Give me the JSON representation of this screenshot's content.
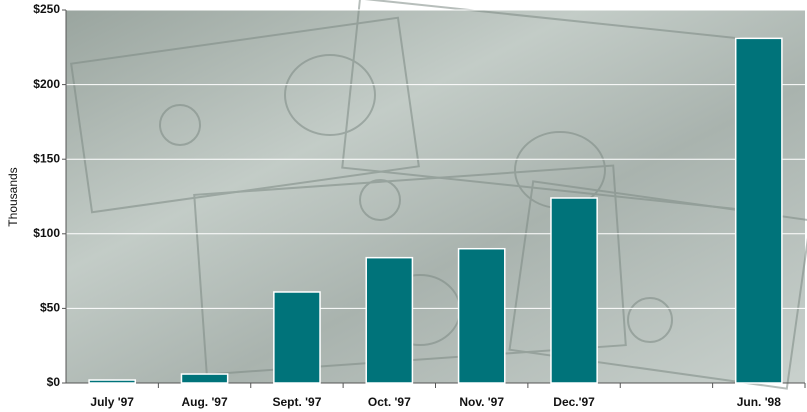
{
  "chart_data": {
    "type": "bar",
    "y_label": "Thousands",
    "categories": [
      "July '97",
      "Aug. '97",
      "Sept. '97",
      "Oct. '97",
      "Nov. '97",
      "Dec.'97",
      null,
      "Jun. '98"
    ],
    "values": [
      2,
      6,
      61,
      84,
      90,
      124,
      null,
      231
    ],
    "color": "#00737a",
    "ylim": [
      0,
      250
    ],
    "yticks": [
      {
        "value": 0,
        "label": "$0"
      },
      {
        "value": 50,
        "label": "$50"
      },
      {
        "value": 100,
        "label": "$100"
      },
      {
        "value": 150,
        "label": "$150"
      },
      {
        "value": 200,
        "label": "$200"
      },
      {
        "value": 250,
        "label": "$250"
      }
    ],
    "grid": true
  }
}
